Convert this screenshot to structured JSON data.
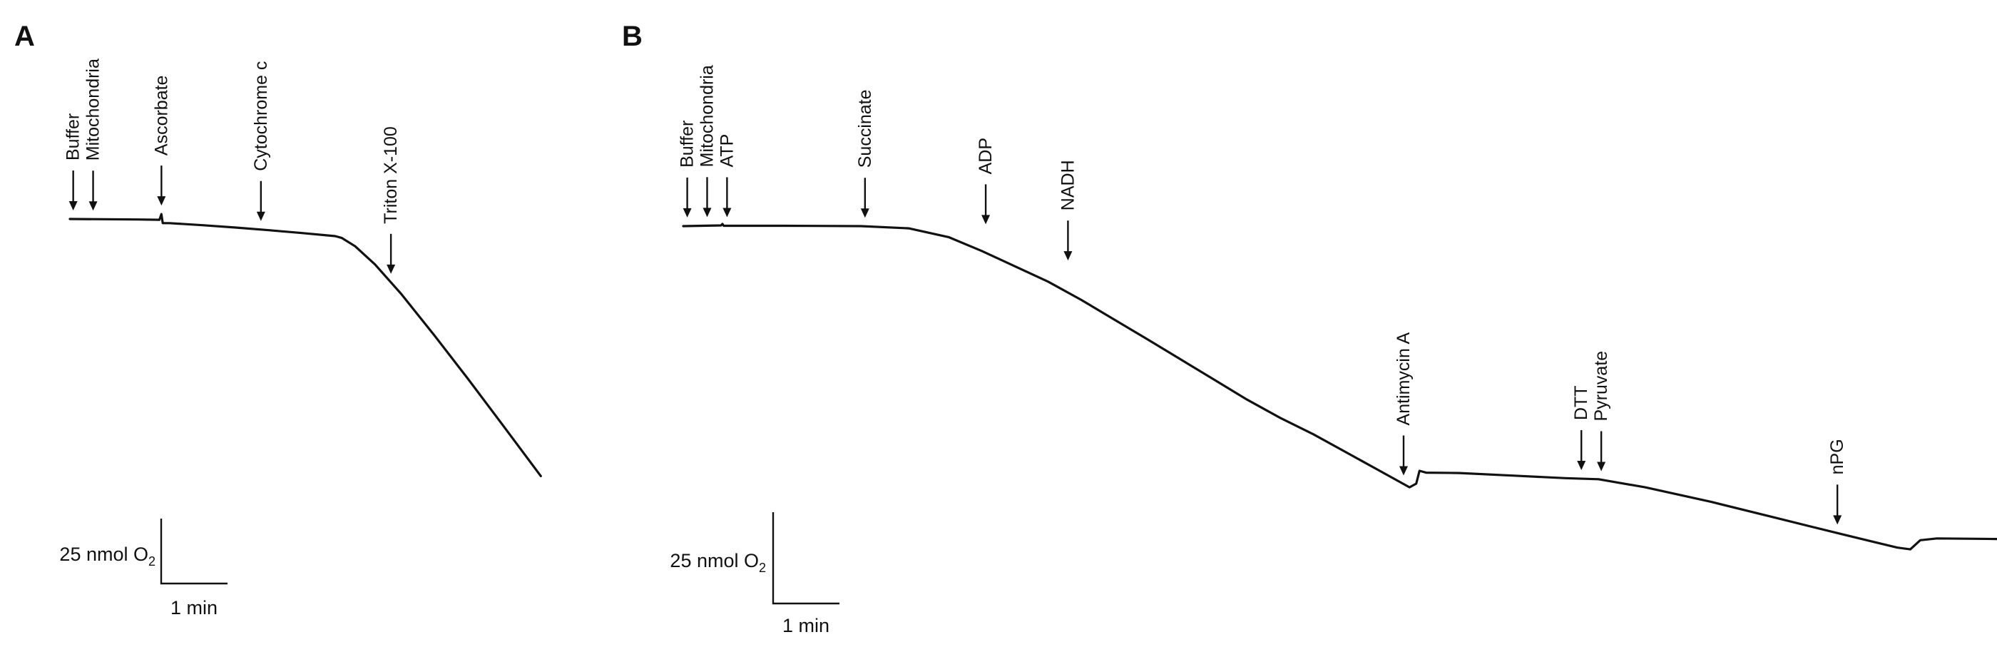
{
  "figure": {
    "panels": [
      {
        "letter": "A",
        "scale_bar": {
          "oxygen_label": "25 nmol O",
          "oxygen_subscript": "2",
          "time_label": "1 min"
        }
      },
      {
        "letter": "B",
        "scale_bar": {
          "oxygen_label": "25 nmol O",
          "oxygen_subscript": "2",
          "time_label": "1 min"
        }
      }
    ]
  },
  "chart_data": [
    {
      "panel": "A",
      "type": "line",
      "x_unit": "min",
      "y_unit": "nmol O2",
      "scale_bar": {
        "y": 25,
        "x": 1
      },
      "trace": [
        [
          0.0,
          0.0
        ],
        [
          1.03,
          -0.2
        ],
        [
          1.35,
          -0.3
        ],
        [
          1.38,
          1.9
        ],
        [
          1.4,
          -1.6
        ],
        [
          1.5,
          -1.6
        ],
        [
          2.0,
          -2.4
        ],
        [
          2.5,
          -3.3
        ],
        [
          3.0,
          -4.3
        ],
        [
          3.5,
          -5.4
        ],
        [
          4.0,
          -6.6
        ],
        [
          4.1,
          -7.3
        ],
        [
          4.3,
          -10.5
        ],
        [
          4.6,
          -17.5
        ],
        [
          5.0,
          -29.0
        ],
        [
          5.5,
          -45.0
        ],
        [
          6.0,
          -61.5
        ],
        [
          6.5,
          -78.5
        ],
        [
          7.1,
          -99.0
        ]
      ],
      "additions": [
        {
          "label": "Buffer",
          "time": 0.05
        },
        {
          "label": "Mitochondria",
          "time": 0.35
        },
        {
          "label": "Ascorbate",
          "time": 1.38
        },
        {
          "label": "Cytochrome c",
          "time": 2.88
        },
        {
          "label": "Triton X-100",
          "time": 4.84
        }
      ]
    },
    {
      "panel": "B",
      "type": "line",
      "x_unit": "min",
      "y_unit": "nmol O2",
      "scale_bar": {
        "y": 25,
        "x": 1
      },
      "trace": [
        [
          0.0,
          0.0
        ],
        [
          0.57,
          0.2
        ],
        [
          0.59,
          0.6
        ],
        [
          0.61,
          0.1
        ],
        [
          1.5,
          0.1
        ],
        [
          2.68,
          0.0
        ],
        [
          3.4,
          -0.6
        ],
        [
          4.0,
          -3.0
        ],
        [
          4.5,
          -6.8
        ],
        [
          5.0,
          -11.0
        ],
        [
          5.5,
          -15.2
        ],
        [
          6.0,
          -20.2
        ],
        [
          6.5,
          -25.6
        ],
        [
          7.0,
          -31.0
        ],
        [
          7.5,
          -36.5
        ],
        [
          8.0,
          -42.0
        ],
        [
          8.5,
          -47.5
        ],
        [
          9.0,
          -52.5
        ],
        [
          9.5,
          -57.0
        ],
        [
          10.0,
          -62.0
        ],
        [
          10.5,
          -67.0
        ],
        [
          10.95,
          -71.5
        ],
        [
          11.05,
          -70.5
        ],
        [
          11.1,
          -67.0
        ],
        [
          11.2,
          -67.5
        ],
        [
          11.7,
          -67.6
        ],
        [
          12.5,
          -68.3
        ],
        [
          13.3,
          -69.0
        ],
        [
          13.8,
          -69.3
        ],
        [
          14.5,
          -71.5
        ],
        [
          15.5,
          -75.5
        ],
        [
          16.5,
          -80.0
        ],
        [
          17.5,
          -84.5
        ],
        [
          18.3,
          -88.0
        ],
        [
          18.5,
          -88.5
        ],
        [
          18.65,
          -86.0
        ],
        [
          18.9,
          -85.5
        ],
        [
          19.5,
          -85.6
        ],
        [
          20.5,
          -85.8
        ],
        [
          21.2,
          -85.9
        ]
      ],
      "additions": [
        {
          "label": "Buffer",
          "time": 0.06
        },
        {
          "label": "Mitochondria",
          "time": 0.36
        },
        {
          "label": "ATP",
          "time": 0.66
        },
        {
          "label": "Succinate",
          "time": 2.74
        },
        {
          "label": "ADP",
          "time": 4.56
        },
        {
          "label": "NADH",
          "time": 5.8
        },
        {
          "label": "Antimycin A",
          "time": 10.86
        },
        {
          "label": "DTT",
          "time": 13.54
        },
        {
          "label": "Pyruvate",
          "time": 13.84
        },
        {
          "label": "nPG",
          "time": 17.4
        }
      ]
    }
  ]
}
